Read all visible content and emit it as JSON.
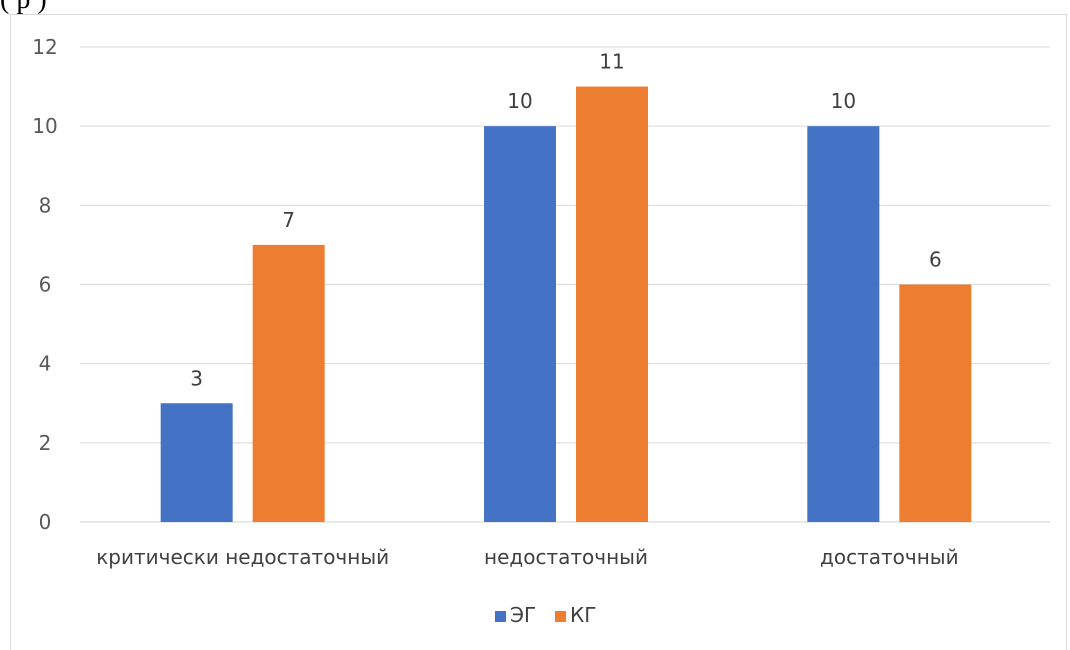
{
  "page_fragment_text": "(    р )",
  "chart_data": {
    "type": "bar",
    "categories": [
      "критически недостаточный",
      "недостаточный",
      "достаточный"
    ],
    "series": [
      {
        "name": "ЭГ",
        "color": "#4472c4",
        "values": [
          3,
          10,
          10
        ]
      },
      {
        "name": "КГ",
        "color": "#ed7d31",
        "values": [
          7,
          11,
          6
        ]
      }
    ],
    "ylim": [
      0,
      12
    ],
    "yticks": [
      "0",
      "2",
      "4",
      "6",
      "8",
      "10",
      "12"
    ],
    "grid": true,
    "legend": "bottom-center",
    "data_labels": true
  }
}
